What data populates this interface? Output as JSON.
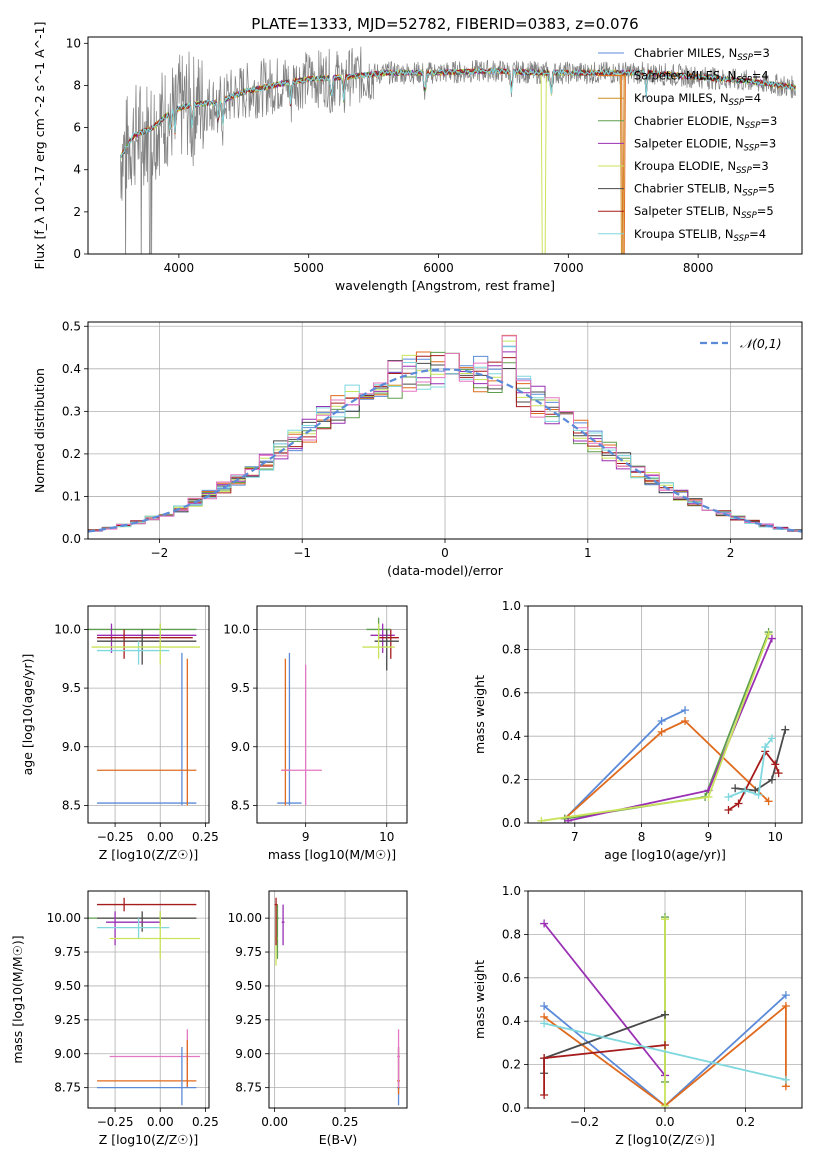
{
  "title": "PLATE=1333, MJD=52782, FIBERID=0383, z=0.076",
  "colors": {
    "Chabrier MILES": "#5b8bd8",
    "Salpeter MILES": "#e06b1f",
    "Kroupa MILES": "#ce8e22",
    "Chabrier ELODIE": "#5e9e4e",
    "Salpeter ELODIE": "#9a2fb3",
    "Kroupa ELODIE": "#c9e35a",
    "Chabrier STELIB": "#4a4a4a",
    "Salpeter STELIB": "#a61c1c",
    "Kroupa STELIB": "#7fd8de",
    "data": "#808080",
    "pink": "#e377c2"
  },
  "chart_data": [
    {
      "type": "line",
      "title": "PLATE=1333, MJD=52782, FIBERID=0383, z=0.076",
      "xlabel": "wavelength [Angstrom, rest frame]",
      "ylabel": "Flux [f_λ 10^-17 erg cm^-2 s^-1 A^-1]",
      "xlim": [
        3300,
        8800
      ],
      "ylim": [
        0,
        10.3
      ],
      "xticks": [
        "4000",
        "5000",
        "6000",
        "7000",
        "8000"
      ],
      "yticks": [
        "0",
        "2",
        "4",
        "6",
        "8",
        "10"
      ],
      "grid": false,
      "legend_position": "right",
      "legend": [
        {
          "base": "Chabrier MILES, N",
          "sub": "SSP",
          "tail": "=3"
        },
        {
          "base": "Salpeter MILES, N",
          "sub": "SSP",
          "tail": "=4"
        },
        {
          "base": "Kroupa MILES, N",
          "sub": "SSP",
          "tail": "=4"
        },
        {
          "base": "Chabrier ELODIE, N",
          "sub": "SSP",
          "tail": "=3"
        },
        {
          "base": "Salpeter ELODIE, N",
          "sub": "SSP",
          "tail": "=3"
        },
        {
          "base": "Kroupa ELODIE, N",
          "sub": "SSP",
          "tail": "=3"
        },
        {
          "base": "Chabrier STELIB, N",
          "sub": "SSP",
          "tail": "=5"
        },
        {
          "base": "Salpeter STELIB, N",
          "sub": "SSP",
          "tail": "=5"
        },
        {
          "base": "Kroupa STELIB, N",
          "sub": "SSP",
          "tail": "=4"
        }
      ],
      "continuum": {
        "x": [
          3550,
          3650,
          3800,
          3950,
          4100,
          4300,
          4500,
          4800,
          5000,
          5300,
          5600,
          6000,
          6400,
          6800,
          7200,
          7600,
          8000,
          8400,
          8750
        ],
        "y": [
          4.6,
          5.6,
          6.0,
          6.8,
          7.1,
          7.2,
          7.7,
          8.1,
          8.3,
          8.4,
          8.6,
          8.6,
          8.7,
          8.6,
          8.6,
          8.6,
          8.4,
          8.2,
          7.9
        ]
      }
    },
    {
      "type": "histogram",
      "xlabel": "(data-model)/error",
      "ylabel": "Normed distribution",
      "xlim": [
        -2.5,
        2.5
      ],
      "ylim": [
        0,
        0.51
      ],
      "xticks": [
        "−2",
        "−1",
        "0",
        "1",
        "2"
      ],
      "yticks": [
        "0.0",
        "0.1",
        "0.2",
        "0.3",
        "0.4",
        "0.5"
      ],
      "grid": true,
      "legend_position": "top-right",
      "reference_label": "𝒩(0,1)",
      "reference_curve": "standard normal pdf",
      "bin_width": 0.1
    },
    {
      "type": "scatter",
      "panel": "Z vs age",
      "xlabel": "Z [log10(Z/Z☉)]",
      "ylabel": "age [log10(age/yr)]",
      "xlim": [
        -0.4,
        0.27
      ],
      "ylim": [
        8.35,
        10.2
      ],
      "xticks": [
        "−0.25",
        "0.00",
        "0.25"
      ],
      "yticks": [
        "8.5",
        "9.0",
        "9.5",
        "10.0"
      ],
      "grid": true
    },
    {
      "type": "scatter",
      "panel": "mass vs age",
      "xlabel": "mass [log10(M/M☉)]",
      "ylabel": "",
      "xlim": [
        8.4,
        10.25
      ],
      "ylim": [
        8.35,
        10.2
      ],
      "xticks": [
        "9",
        "10"
      ],
      "yticks": [
        "8.5",
        "9.0",
        "9.5",
        "10.0"
      ],
      "grid": true
    },
    {
      "type": "line",
      "panel": "age vs mass weight",
      "xlabel": "age [log10(age/yr)]",
      "ylabel": "mass weight",
      "xlim": [
        6.3,
        10.4
      ],
      "ylim": [
        0,
        1.0
      ],
      "xticks": [
        "7",
        "8",
        "9",
        "10"
      ],
      "yticks": [
        "0.0",
        "0.2",
        "0.4",
        "0.6",
        "0.8",
        "1.0"
      ],
      "grid": true,
      "series": [
        {
          "key": "Chabrier MILES",
          "x": [
            6.85,
            8.3,
            8.65
          ],
          "y": [
            0.02,
            0.47,
            0.52
          ]
        },
        {
          "key": "Salpeter MILES",
          "x": [
            6.85,
            8.3,
            8.65,
            9.9
          ],
          "y": [
            0.02,
            0.42,
            0.47,
            0.1
          ]
        },
        {
          "key": "Chabrier ELODIE",
          "x": [
            6.85,
            8.95,
            9.9
          ],
          "y": [
            0.02,
            0.12,
            0.88
          ]
        },
        {
          "key": "Salpeter ELODIE",
          "x": [
            6.9,
            9.0,
            9.95
          ],
          "y": [
            0.01,
            0.15,
            0.85
          ]
        },
        {
          "key": "Kroupa ELODIE",
          "x": [
            6.5,
            9.0,
            9.9
          ],
          "y": [
            0.01,
            0.12,
            0.87
          ]
        },
        {
          "key": "Chabrier STELIB",
          "x": [
            9.4,
            9.7,
            9.95,
            10.15
          ],
          "y": [
            0.16,
            0.15,
            0.2,
            0.43
          ]
        },
        {
          "key": "Salpeter STELIB",
          "x": [
            9.3,
            9.45,
            9.85,
            10.0,
            10.05
          ],
          "y": [
            0.06,
            0.09,
            0.33,
            0.27,
            0.23
          ]
        },
        {
          "key": "Kroupa STELIB",
          "x": [
            9.3,
            9.55,
            9.75,
            9.85,
            9.95
          ],
          "y": [
            0.12,
            0.15,
            0.13,
            0.35,
            0.39
          ]
        }
      ]
    },
    {
      "type": "scatter",
      "panel": "Z vs mass",
      "xlabel": "Z [log10(Z/Z☉)]",
      "ylabel": "mass [log10(M/M☉)]",
      "xlim": [
        -0.4,
        0.27
      ],
      "ylim": [
        8.6,
        10.2
      ],
      "xticks": [
        "−0.25",
        "0.00",
        "0.25"
      ],
      "yticks": [
        "8.75",
        "9.00",
        "9.25",
        "9.50",
        "9.75",
        "10.00"
      ],
      "grid": true
    },
    {
      "type": "scatter",
      "panel": "E(B-V) vs mass",
      "xlabel": "E(B-V)",
      "ylabel": "",
      "xlim": [
        -0.02,
        0.47
      ],
      "ylim": [
        8.6,
        10.2
      ],
      "xticks": [
        "0.00",
        "0.25"
      ],
      "yticks": [
        "8.75",
        "9.00",
        "9.25",
        "9.50",
        "9.75",
        "10.00"
      ],
      "grid": true
    },
    {
      "type": "line",
      "panel": "Z vs mass weight",
      "xlabel": "Z [log10(Z/Z☉)]",
      "ylabel": "mass weight",
      "xlim": [
        -0.34,
        0.34
      ],
      "ylim": [
        0,
        1.0
      ],
      "xticks": [
        "−0.2",
        "0.0",
        "0.2"
      ],
      "yticks": [
        "0.0",
        "0.2",
        "0.4",
        "0.6",
        "0.8",
        "1.0"
      ],
      "grid": true,
      "series": [
        {
          "key": "Chabrier MILES",
          "x": [
            -0.3,
            0.0,
            0.3
          ],
          "y": [
            0.47,
            0.01,
            0.52
          ]
        },
        {
          "key": "Salpeter MILES",
          "x": [
            -0.3,
            0.0,
            0.3,
            0.3
          ],
          "y": [
            0.42,
            0.01,
            0.47,
            0.1
          ]
        },
        {
          "key": "Chabrier ELODIE",
          "x": [
            0.0,
            0.0
          ],
          "y": [
            0.12,
            0.88
          ]
        },
        {
          "key": "Salpeter ELODIE",
          "x": [
            -0.3,
            0.0
          ],
          "y": [
            0.85,
            0.15
          ]
        },
        {
          "key": "Kroupa ELODIE",
          "x": [
            0.0,
            0.0
          ],
          "y": [
            0.01,
            0.87
          ]
        },
        {
          "key": "Chabrier STELIB",
          "x": [
            -0.3,
            -0.3,
            0.0
          ],
          "y": [
            0.16,
            0.23,
            0.43
          ]
        },
        {
          "key": "Salpeter STELIB",
          "x": [
            -0.3,
            -0.3,
            0.0
          ],
          "y": [
            0.06,
            0.23,
            0.29
          ]
        },
        {
          "key": "Kroupa STELIB",
          "x": [
            -0.3,
            0.3
          ],
          "y": [
            0.39,
            0.13
          ]
        }
      ]
    }
  ],
  "errorbars": {
    "za": [
      {
        "c": "Chabrier ELODIE",
        "x": 0.0,
        "y": 10.0,
        "xr": [
          -0.4,
          0.2
        ],
        "yr": [
          9.95,
          10.05
        ]
      },
      {
        "c": "Salpeter ELODIE",
        "x": -0.27,
        "y": 9.95,
        "xr": [
          -0.35,
          0.2
        ],
        "yr": [
          9.8,
          10.05
        ]
      },
      {
        "c": "Salpeter STELIB",
        "x": -0.2,
        "y": 9.93,
        "xr": [
          -0.35,
          0.18
        ],
        "yr": [
          9.75,
          10.0
        ]
      },
      {
        "c": "Chabrier STELIB",
        "x": -0.1,
        "y": 9.9,
        "xr": [
          -0.35,
          0.2
        ],
        "yr": [
          9.7,
          10.0
        ]
      },
      {
        "c": "Kroupa STELIB",
        "x": -0.12,
        "y": 9.82,
        "xr": [
          -0.35,
          0.05
        ],
        "yr": [
          9.7,
          9.9
        ]
      },
      {
        "c": "Kroupa ELODIE",
        "x": 0.0,
        "y": 9.85,
        "xr": [
          -0.38,
          0.22
        ],
        "yr": [
          9.7,
          10.05
        ]
      },
      {
        "c": "Chabrier MILES",
        "x": 0.12,
        "y": 8.52,
        "xr": [
          -0.35,
          0.2
        ],
        "yr": [
          8.5,
          9.8
        ]
      },
      {
        "c": "Salpeter MILES",
        "x": 0.15,
        "y": 8.8,
        "xr": [
          -0.35,
          0.2
        ],
        "yr": [
          8.5,
          9.75
        ]
      }
    ],
    "ma": [
      {
        "c": "Chabrier ELODIE",
        "x": 9.9,
        "y": 10.0,
        "xr": [
          9.75,
          10.05
        ],
        "yr": [
          9.9,
          10.1
        ]
      },
      {
        "c": "Salpeter ELODIE",
        "x": 9.95,
        "y": 9.95,
        "xr": [
          9.8,
          10.1
        ],
        "yr": [
          9.8,
          10.05
        ]
      },
      {
        "c": "Salpeter STELIB",
        "x": 10.05,
        "y": 9.93,
        "xr": [
          9.9,
          10.15
        ],
        "yr": [
          9.75,
          10.0
        ]
      },
      {
        "c": "Chabrier STELIB",
        "x": 10.0,
        "y": 9.9,
        "xr": [
          9.85,
          10.15
        ],
        "yr": [
          9.65,
          10.0
        ]
      },
      {
        "c": "Kroupa ELODIE",
        "x": 9.9,
        "y": 9.85,
        "xr": [
          9.7,
          10.1
        ],
        "yr": [
          9.75,
          10.05
        ]
      },
      {
        "c": "Chabrier MILES",
        "x": 8.8,
        "y": 8.52,
        "xr": [
          8.65,
          8.95
        ],
        "yr": [
          8.5,
          9.8
        ]
      },
      {
        "c": "Salpeter MILES",
        "x": 8.75,
        "y": 8.8,
        "xr": [
          8.7,
          8.8
        ],
        "yr": [
          8.5,
          9.75
        ]
      },
      {
        "c": "pink",
        "x": 9.0,
        "y": 8.8,
        "xr": [
          8.7,
          9.2
        ],
        "yr": [
          8.5,
          9.7
        ]
      }
    ],
    "zm": [
      {
        "c": "Chabrier ELODIE",
        "x": 0.0,
        "y": 10.0,
        "xr": [
          -0.4,
          0.2
        ],
        "yr": [
          9.95,
          10.05
        ]
      },
      {
        "c": "Salpeter STELIB",
        "x": -0.2,
        "y": 10.1,
        "xr": [
          -0.35,
          0.2
        ],
        "yr": [
          10.05,
          10.15
        ]
      },
      {
        "c": "Chabrier STELIB",
        "x": -0.1,
        "y": 10.0,
        "xr": [
          -0.35,
          0.2
        ],
        "yr": [
          9.9,
          10.05
        ]
      },
      {
        "c": "Salpeter ELODIE",
        "x": -0.25,
        "y": 9.97,
        "xr": [
          -0.3,
          0.0
        ],
        "yr": [
          9.8,
          10.05
        ]
      },
      {
        "c": "Kroupa STELIB",
        "x": -0.12,
        "y": 9.93,
        "xr": [
          -0.35,
          0.05
        ],
        "yr": [
          9.85,
          10.0
        ]
      },
      {
        "c": "Kroupa ELODIE",
        "x": 0.0,
        "y": 9.85,
        "xr": [
          -0.28,
          0.22
        ],
        "yr": [
          9.7,
          10.05
        ]
      },
      {
        "c": "pink",
        "x": 0.15,
        "y": 8.98,
        "xr": [
          -0.28,
          0.22
        ],
        "yr": [
          8.75,
          9.18
        ]
      },
      {
        "c": "Salpeter MILES",
        "x": 0.15,
        "y": 8.8,
        "xr": [
          -0.35,
          0.2
        ],
        "yr": [
          8.75,
          9.1
        ]
      },
      {
        "c": "Chabrier MILES",
        "x": 0.12,
        "y": 8.75,
        "xr": [
          -0.35,
          0.2
        ],
        "yr": [
          8.62,
          9.05
        ]
      }
    ],
    "em": [
      {
        "c": "Chabrier ELODIE",
        "x": 0.01,
        "y": 10.0,
        "xr": [
          0.005,
          0.015
        ],
        "yr": [
          9.7,
          10.1
        ]
      },
      {
        "c": "Kroupa ELODIE",
        "x": 0.005,
        "y": 9.85,
        "xr": [
          0.0,
          0.01
        ],
        "yr": [
          9.65,
          10.1
        ]
      },
      {
        "c": "Salpeter ELODIE",
        "x": 0.03,
        "y": 9.97,
        "xr": [
          0.025,
          0.035
        ],
        "yr": [
          9.8,
          10.1
        ]
      },
      {
        "c": "Salpeter STELIB",
        "x": 0.005,
        "y": 10.1,
        "xr": [
          0.0,
          0.01
        ],
        "yr": [
          9.8,
          10.15
        ]
      },
      {
        "c": "Chabrier MILES",
        "x": 0.44,
        "y": 8.75,
        "xr": [
          0.435,
          0.445
        ],
        "yr": [
          8.62,
          9.05
        ]
      },
      {
        "c": "Salpeter MILES",
        "x": 0.44,
        "y": 8.8,
        "xr": [
          0.435,
          0.445
        ],
        "yr": [
          8.7,
          9.05
        ]
      },
      {
        "c": "pink",
        "x": 0.44,
        "y": 8.98,
        "xr": [
          0.435,
          0.445
        ],
        "yr": [
          8.75,
          9.18
        ]
      }
    ]
  }
}
